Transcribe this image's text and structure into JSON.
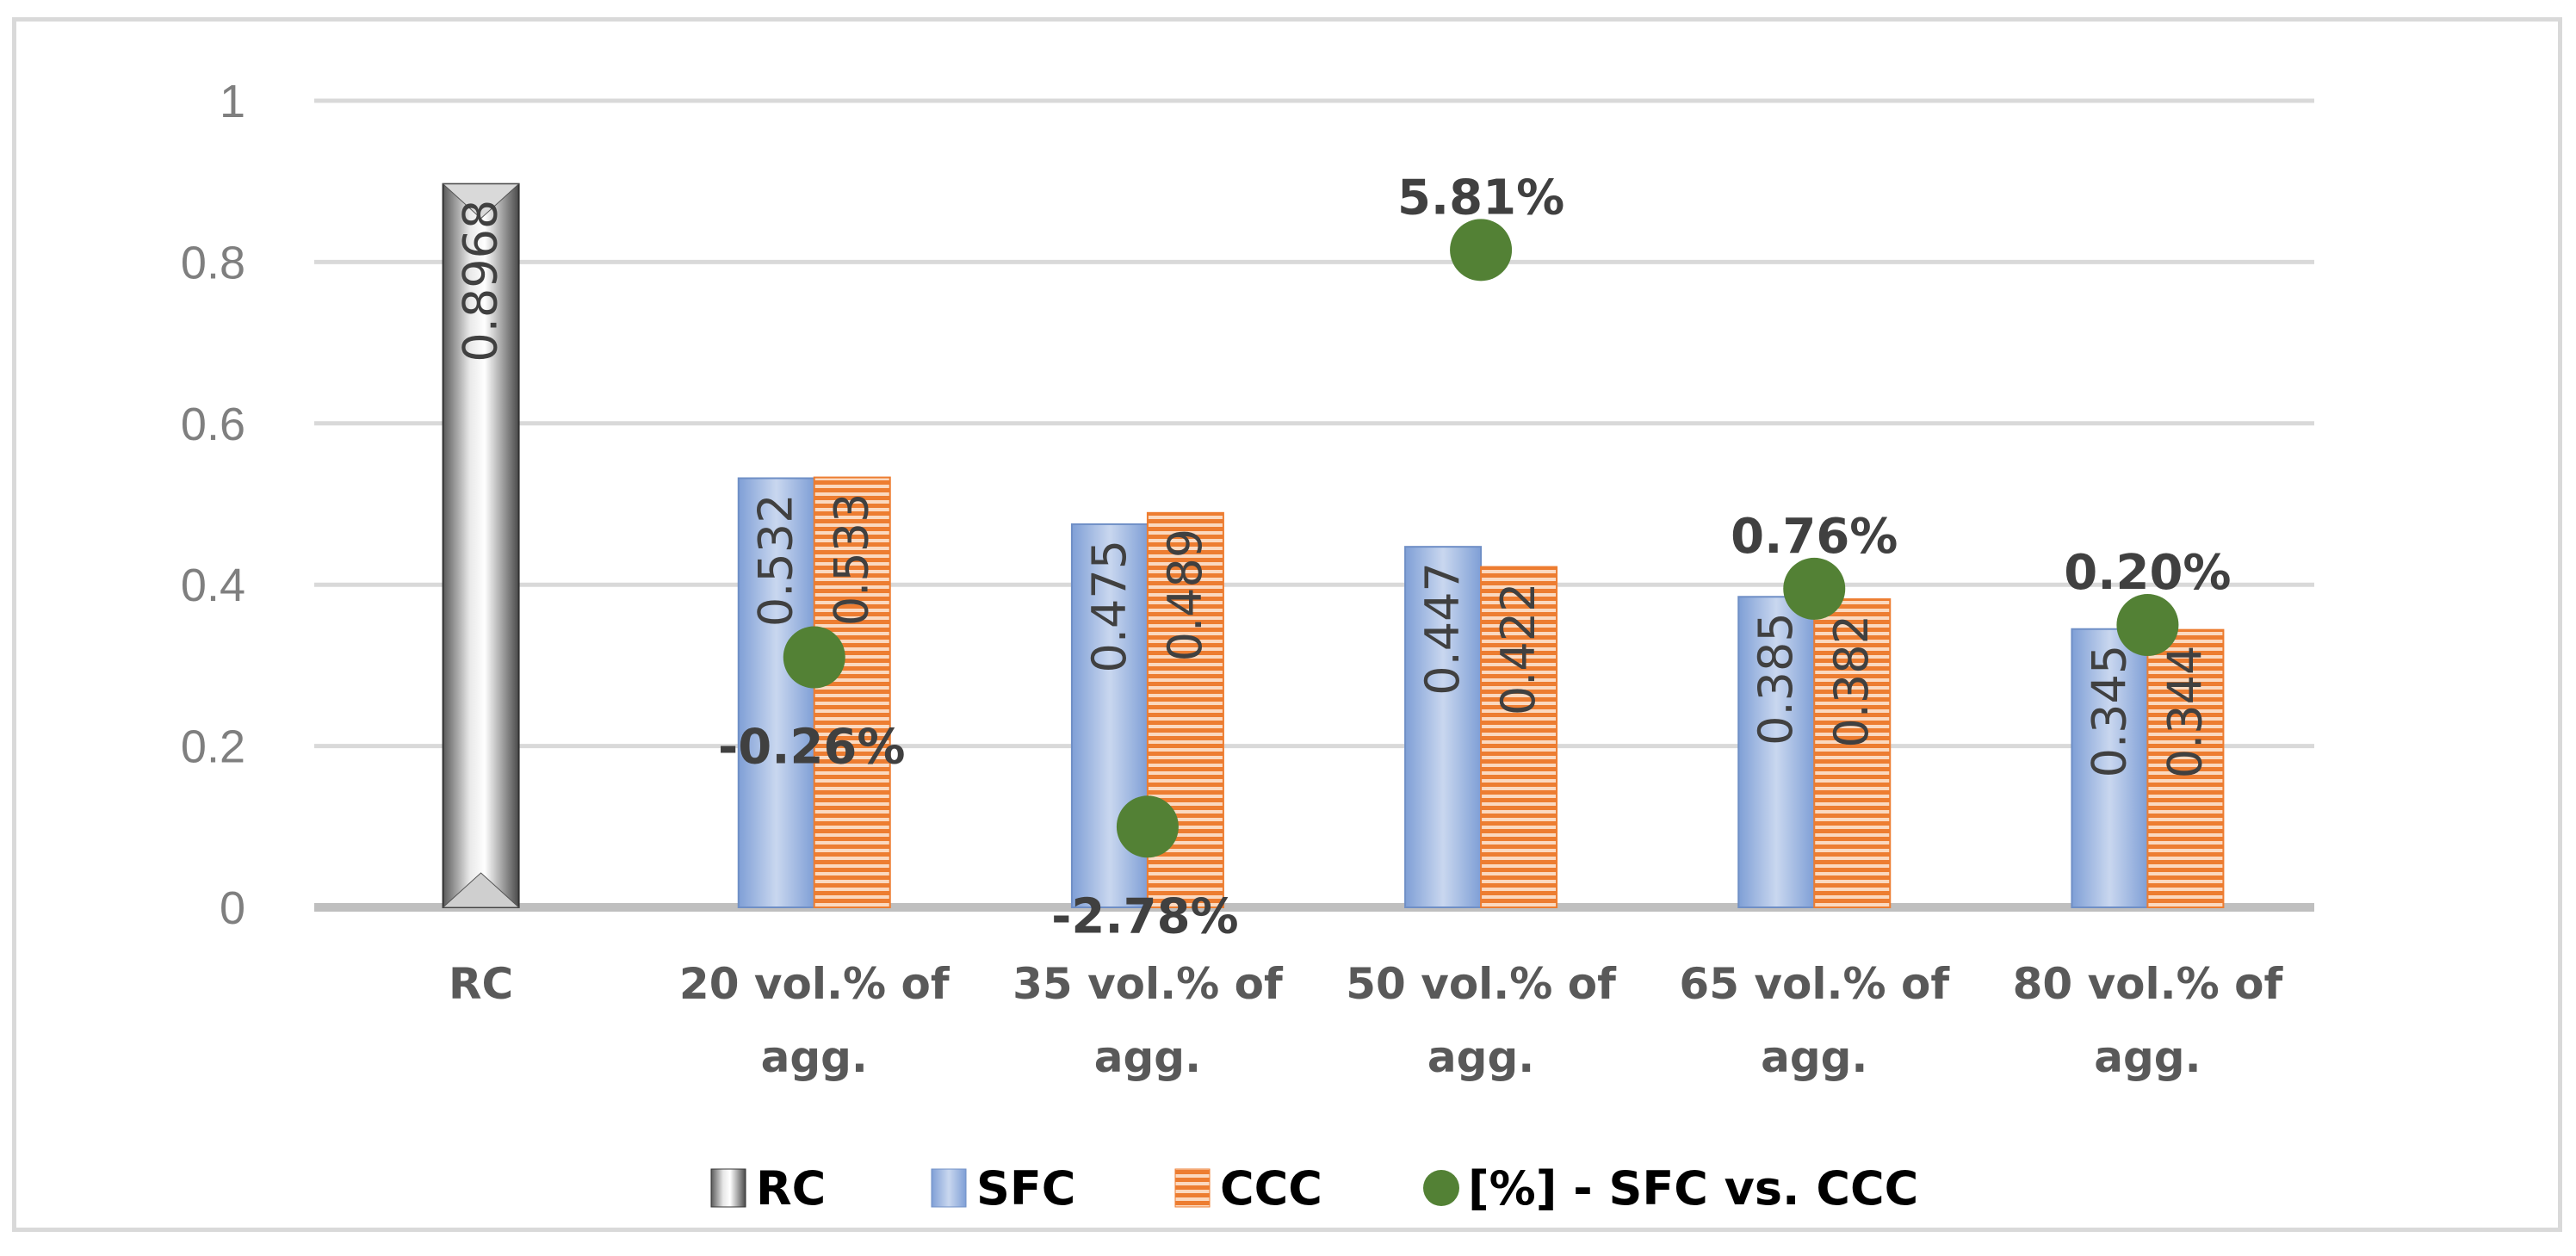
{
  "chart_data": {
    "type": "bar",
    "title": "",
    "xlabel": "",
    "ylabel": "",
    "ylim": [
      0,
      1
    ],
    "yticks": [
      "0",
      "0.2",
      "0.4",
      "0.6",
      "0.8",
      "1"
    ],
    "categories": [
      "RC",
      "20 vol.% of agg.",
      "35 vol.% of agg.",
      "50 vol.% of agg.",
      "65 vol.% of agg.",
      "80 vol.% of agg."
    ],
    "category_lines": [
      [
        "RC"
      ],
      [
        "20 vol.% of",
        "agg."
      ],
      [
        "35 vol.% of",
        "agg."
      ],
      [
        "50 vol.% of",
        "agg."
      ],
      [
        "65 vol.% of",
        "agg."
      ],
      [
        "80 vol.% of",
        "agg."
      ]
    ],
    "grid": true,
    "legend_position": "bottom",
    "series": [
      {
        "name": "RC",
        "kind": "bar",
        "color": "#9a9a9a",
        "values": [
          0.8968,
          null,
          null,
          null,
          null,
          null
        ],
        "labels": [
          "0.8968",
          "",
          "",
          "",
          "",
          ""
        ]
      },
      {
        "name": "SFC",
        "kind": "bar",
        "color": "#7f9fd6",
        "values": [
          null,
          0.532,
          0.475,
          0.447,
          0.385,
          0.345
        ],
        "labels": [
          "",
          "0.532",
          "0.475",
          "0.447",
          "0.385",
          "0.345"
        ]
      },
      {
        "name": "CCC",
        "kind": "bar",
        "color": "#ed7d31",
        "values": [
          null,
          0.533,
          0.489,
          0.422,
          0.382,
          0.344
        ],
        "labels": [
          "",
          "0.533",
          "0.489",
          "0.422",
          "0.382",
          "0.344"
        ]
      },
      {
        "name": "[%] - SFC vs. CCC",
        "kind": "marker",
        "color": "#538135",
        "values": [
          null,
          0.31,
          0.1,
          0.815,
          0.395,
          0.35
        ],
        "labels": [
          "",
          "-0.26%",
          "-2.78%",
          "5.81%",
          "0.76%",
          "0.20%"
        ],
        "label_position": [
          "",
          "below",
          "below",
          "above",
          "above",
          "above"
        ]
      }
    ]
  }
}
